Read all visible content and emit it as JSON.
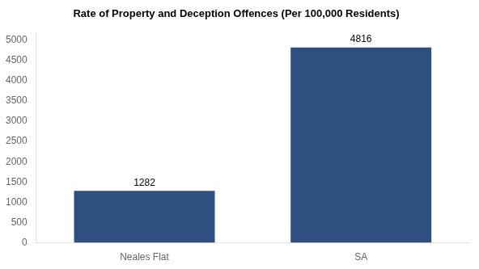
{
  "chart_data": {
    "type": "bar",
    "title": "Rate of Property and Deception Offences (Per 100,000 Residents)",
    "categories": [
      "Neales Flat",
      "SA"
    ],
    "values": [
      1282,
      4816
    ],
    "color": "#2e4f80",
    "ylim": [
      0,
      5200
    ],
    "yticks": [
      0,
      500,
      1000,
      1500,
      2000,
      2500,
      3000,
      3500,
      4000,
      4500,
      5000
    ],
    "grid": false,
    "data_labels": true
  }
}
